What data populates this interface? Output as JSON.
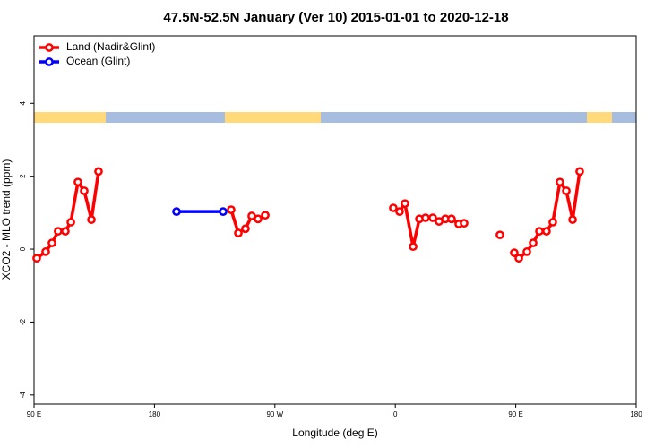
{
  "chart_data": {
    "type": "line",
    "title": "47.5N-52.5N January (Ver 10)   2015-01-01 to 2020-12-18",
    "xlabel": "Longitude (deg E)",
    "ylabel": "XCO2 - MLO trend (ppm)",
    "xlim": [
      90,
      540
    ],
    "xticks": [
      {
        "value": 90,
        "label": "90 E"
      },
      {
        "value": 180,
        "label": "180"
      },
      {
        "value": 270,
        "label": "90 W"
      },
      {
        "value": 360,
        "label": "0"
      },
      {
        "value": 450,
        "label": "90 E"
      },
      {
        "value": 540,
        "label": "180"
      }
    ],
    "ylim": [
      -4.25,
      5.85
    ],
    "yticks": [
      -4,
      -2,
      0,
      2,
      4
    ],
    "legend": "top-left",
    "series": [
      {
        "name": "Land (Nadir&Glint)",
        "color": "#ff0000",
        "x": [
          92,
          98.7,
          103.4,
          108,
          113.4,
          117.5,
          122.8,
          127.5,
          132.9,
          138.2,
          null,
          237.3,
          242.7,
          248,
          252.7,
          257.4,
          262.8,
          null,
          358.5,
          363.2,
          367.2,
          373.3,
          378,
          382.6,
          388,
          392.7,
          397.4,
          402,
          407.4,
          411.4,
          null,
          438.2,
          null,
          448.9,
          452.3,
          458.3,
          463,
          467.7,
          473,
          477.7,
          483,
          487.8,
          492.5,
          497.8
        ],
        "values": [
          -0.25,
          -0.07,
          0.17,
          0.49,
          0.49,
          0.74,
          1.84,
          1.6,
          0.81,
          2.13,
          null,
          1.08,
          0.44,
          0.56,
          0.91,
          0.83,
          0.93,
          null,
          1.13,
          1.03,
          1.25,
          0.07,
          0.83,
          0.86,
          0.86,
          0.76,
          0.83,
          0.83,
          0.69,
          0.71,
          null,
          0.39,
          null,
          -0.1,
          -0.25,
          -0.07,
          0.17,
          0.49,
          0.49,
          0.74,
          1.84,
          1.6,
          0.81,
          2.13
        ]
      },
      {
        "name": "Ocean (Glint)",
        "color": "#0000ff",
        "x": [
          196.5,
          231.3
        ],
        "values": [
          1.03,
          1.03
        ]
      }
    ]
  }
}
